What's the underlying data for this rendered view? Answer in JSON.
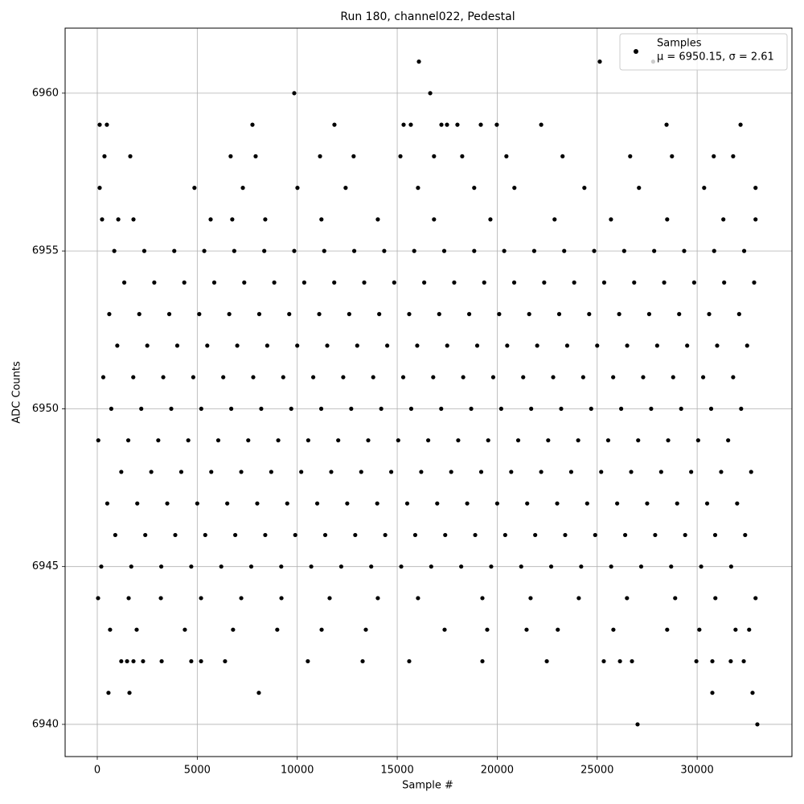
{
  "chart_data": {
    "type": "scatter",
    "title": "Run 180, channel022, Pedestal",
    "x_label": "Sample #",
    "y_label": "ADC Counts",
    "legend_label": "μ = 6950.15, σ = 2.61",
    "legend_loc": "upper right",
    "grid": true,
    "xlim": [
      -1608,
      34740
    ],
    "ylim": [
      6938.98,
      6962.06
    ],
    "xticks": [
      0,
      5000,
      10000,
      15000,
      20000,
      25000,
      30000
    ],
    "yticks": [
      6940,
      6945,
      6950,
      6955,
      6960
    ],
    "series": [
      {
        "name": "Samples",
        "color": "#000000",
        "x": [
          16085,
          25130,
          27800,
          9850,
          16650,
          120,
          480,
          7760,
          11860,
          15320,
          15680,
          17210,
          17490,
          18010,
          19180,
          19980,
          22200,
          28470,
          32170,
          27020,
          33010,
          560,
          1610,
          8080,
          30760,
          32770,
          1200,
          1490,
          1810,
          2290,
          3220,
          4700,
          5190,
          6390,
          10530,
          13270,
          15600,
          19260,
          22480,
          25330,
          26140,
          26740,
          29960,
          30760,
          31680,
          32330,
          240,
          1050,
          1810,
          5670,
          6750,
          8400,
          11210,
          14030,
          16840,
          19660,
          22870,
          25690,
          28500,
          31310,
          32920,
          120,
          4860,
          7280,
          10010,
          12420,
          16040,
          18850,
          20860,
          24360,
          27090,
          30350,
          32920,
          360,
          1650,
          6670,
          7920,
          11140,
          12820,
          15160,
          16840,
          18250,
          20460,
          23270,
          26650,
          28740,
          30830,
          31800,
          40,
          1570,
          3180,
          5190,
          7200,
          9210,
          11620,
          14030,
          16040,
          19260,
          21670,
          24080,
          26490,
          28900,
          30910,
          32920,
          640,
          1970,
          4380,
          6790,
          9000,
          11220,
          13430,
          17370,
          19500,
          21470,
          23030,
          25810,
          28500,
          30110,
          31920,
          32600,
          200,
          1700,
          3200,
          4700,
          6200,
          7700,
          9200,
          10700,
          12200,
          13700,
          15200,
          16700,
          18200,
          19700,
          21200,
          22700,
          24200,
          25700,
          27200,
          28700,
          30200,
          31700,
          900,
          2400,
          3900,
          5400,
          6900,
          8400,
          9900,
          11400,
          12900,
          14400,
          15900,
          17400,
          18900,
          20400,
          21900,
          23400,
          24900,
          26400,
          27900,
          29400,
          30900,
          32400,
          500,
          2000,
          3500,
          5000,
          6500,
          8000,
          9500,
          11000,
          12500,
          14000,
          15500,
          17000,
          18500,
          20000,
          21500,
          23000,
          24500,
          26000,
          27500,
          29000,
          30500,
          32000,
          1200,
          2700,
          4200,
          5700,
          7200,
          8700,
          10200,
          11700,
          13200,
          14700,
          16200,
          17700,
          19200,
          20700,
          22200,
          23700,
          25200,
          26700,
          28200,
          29700,
          31200,
          32700,
          50,
          1550,
          3050,
          4550,
          6050,
          7550,
          9050,
          10550,
          12050,
          13550,
          15050,
          16550,
          18050,
          19550,
          21050,
          22550,
          24050,
          25550,
          27050,
          28550,
          30050,
          31550,
          700,
          2200,
          3700,
          5200,
          6700,
          8200,
          9700,
          11200,
          12700,
          14200,
          15700,
          17200,
          18700,
          20200,
          21700,
          23200,
          24700,
          26200,
          27700,
          29200,
          30700,
          32200,
          300,
          1800,
          3300,
          4800,
          6300,
          7800,
          9300,
          10800,
          12300,
          13800,
          15300,
          16800,
          18300,
          19800,
          21300,
          22800,
          24300,
          25800,
          27300,
          28800,
          30300,
          31800,
          1000,
          2500,
          4000,
          5500,
          7000,
          8500,
          10000,
          11500,
          13000,
          14500,
          16000,
          17500,
          19000,
          20500,
          22000,
          23500,
          25000,
          26500,
          28000,
          29500,
          31000,
          32500,
          600,
          2100,
          3600,
          5100,
          6600,
          8100,
          9600,
          11100,
          12600,
          14100,
          15600,
          17100,
          18600,
          20100,
          21600,
          23100,
          24600,
          26100,
          27600,
          29100,
          30600,
          32100,
          1350,
          2850,
          4350,
          5850,
          7350,
          8850,
          10350,
          11850,
          13350,
          14850,
          16350,
          17850,
          19350,
          20850,
          22350,
          23850,
          25350,
          26850,
          28350,
          29850,
          31350,
          32850,
          850,
          2350,
          3850,
          5350,
          6850,
          8350,
          9850,
          11350,
          12850,
          14350,
          15850,
          17350,
          18850,
          20350,
          21850,
          23350,
          24850,
          26350,
          27850,
          29350,
          30850,
          32350
        ],
        "values": [
          6961,
          6961,
          6961,
          6960,
          6960,
          6959,
          6959,
          6959,
          6959,
          6959,
          6959,
          6959,
          6959,
          6959,
          6959,
          6959,
          6959,
          6959,
          6959,
          6940,
          6940,
          6941,
          6941,
          6941,
          6941,
          6941,
          6942,
          6942,
          6942,
          6942,
          6942,
          6942,
          6942,
          6942,
          6942,
          6942,
          6942,
          6942,
          6942,
          6942,
          6942,
          6942,
          6942,
          6942,
          6942,
          6942,
          6956,
          6956,
          6956,
          6956,
          6956,
          6956,
          6956,
          6956,
          6956,
          6956,
          6956,
          6956,
          6956,
          6956,
          6956,
          6957,
          6957,
          6957,
          6957,
          6957,
          6957,
          6957,
          6957,
          6957,
          6957,
          6957,
          6957,
          6958,
          6958,
          6958,
          6958,
          6958,
          6958,
          6958,
          6958,
          6958,
          6958,
          6958,
          6958,
          6958,
          6958,
          6958,
          6944,
          6944,
          6944,
          6944,
          6944,
          6944,
          6944,
          6944,
          6944,
          6944,
          6944,
          6944,
          6944,
          6944,
          6944,
          6944,
          6943,
          6943,
          6943,
          6943,
          6943,
          6943,
          6943,
          6943,
          6943,
          6943,
          6943,
          6943,
          6943,
          6943,
          6943,
          6943,
          6945,
          6945,
          6945,
          6945,
          6945,
          6945,
          6945,
          6945,
          6945,
          6945,
          6945,
          6945,
          6945,
          6945,
          6945,
          6945,
          6945,
          6945,
          6945,
          6945,
          6945,
          6945,
          6946,
          6946,
          6946,
          6946,
          6946,
          6946,
          6946,
          6946,
          6946,
          6946,
          6946,
          6946,
          6946,
          6946,
          6946,
          6946,
          6946,
          6946,
          6946,
          6946,
          6946,
          6946,
          6947,
          6947,
          6947,
          6947,
          6947,
          6947,
          6947,
          6947,
          6947,
          6947,
          6947,
          6947,
          6947,
          6947,
          6947,
          6947,
          6947,
          6947,
          6947,
          6947,
          6947,
          6947,
          6948,
          6948,
          6948,
          6948,
          6948,
          6948,
          6948,
          6948,
          6948,
          6948,
          6948,
          6948,
          6948,
          6948,
          6948,
          6948,
          6948,
          6948,
          6948,
          6948,
          6948,
          6948,
          6949,
          6949,
          6949,
          6949,
          6949,
          6949,
          6949,
          6949,
          6949,
          6949,
          6949,
          6949,
          6949,
          6949,
          6949,
          6949,
          6949,
          6949,
          6949,
          6949,
          6949,
          6949,
          6950,
          6950,
          6950,
          6950,
          6950,
          6950,
          6950,
          6950,
          6950,
          6950,
          6950,
          6950,
          6950,
          6950,
          6950,
          6950,
          6950,
          6950,
          6950,
          6950,
          6950,
          6950,
          6951,
          6951,
          6951,
          6951,
          6951,
          6951,
          6951,
          6951,
          6951,
          6951,
          6951,
          6951,
          6951,
          6951,
          6951,
          6951,
          6951,
          6951,
          6951,
          6951,
          6951,
          6951,
          6952,
          6952,
          6952,
          6952,
          6952,
          6952,
          6952,
          6952,
          6952,
          6952,
          6952,
          6952,
          6952,
          6952,
          6952,
          6952,
          6952,
          6952,
          6952,
          6952,
          6952,
          6952,
          6953,
          6953,
          6953,
          6953,
          6953,
          6953,
          6953,
          6953,
          6953,
          6953,
          6953,
          6953,
          6953,
          6953,
          6953,
          6953,
          6953,
          6953,
          6953,
          6953,
          6953,
          6953,
          6954,
          6954,
          6954,
          6954,
          6954,
          6954,
          6954,
          6954,
          6954,
          6954,
          6954,
          6954,
          6954,
          6954,
          6954,
          6954,
          6954,
          6954,
          6954,
          6954,
          6954,
          6954,
          6955,
          6955,
          6955,
          6955,
          6955,
          6955,
          6955,
          6955,
          6955,
          6955,
          6955,
          6955,
          6955,
          6955,
          6955,
          6955,
          6955,
          6955,
          6955,
          6955,
          6955,
          6955
        ]
      }
    ]
  }
}
